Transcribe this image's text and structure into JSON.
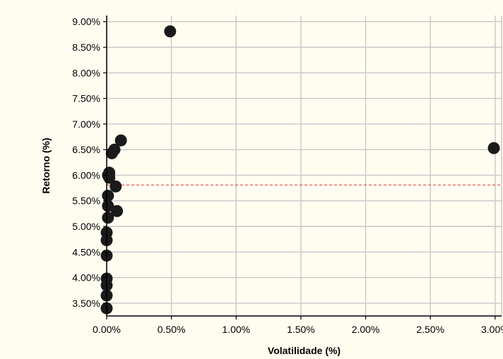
{
  "chart_data": {
    "type": "scatter",
    "title": "",
    "xlabel": "Volatilidade (%)",
    "ylabel": "Retorno (%)",
    "xlim": [
      0.0,
      3.05
    ],
    "ylim": [
      3.25,
      9.12
    ],
    "x_ticks": [
      {
        "value": 0.0,
        "label": "0.00%"
      },
      {
        "value": 0.5,
        "label": "0.50%"
      },
      {
        "value": 1.0,
        "label": "1.00%"
      },
      {
        "value": 1.5,
        "label": "1.50%"
      },
      {
        "value": 2.0,
        "label": "2.00%"
      },
      {
        "value": 2.5,
        "label": "2.50%"
      },
      {
        "value": 3.0,
        "label": "3.00%"
      }
    ],
    "y_ticks": [
      {
        "value": 3.5,
        "label": "3.50%"
      },
      {
        "value": 4.0,
        "label": "4.00%"
      },
      {
        "value": 4.5,
        "label": "4.50%"
      },
      {
        "value": 5.0,
        "label": "5.00%"
      },
      {
        "value": 5.5,
        "label": "5.50%"
      },
      {
        "value": 6.0,
        "label": "6.00%"
      },
      {
        "value": 6.5,
        "label": "6.50%"
      },
      {
        "value": 7.0,
        "label": "7.00%"
      },
      {
        "value": 7.5,
        "label": "7.50%"
      },
      {
        "value": 8.0,
        "label": "8.00%"
      },
      {
        "value": 8.5,
        "label": "8.50%"
      },
      {
        "value": 9.0,
        "label": "9.00%"
      }
    ],
    "grid": true,
    "reference_line": {
      "orientation": "horizontal",
      "y": 5.81,
      "style": "dashed",
      "color": "#e63232"
    },
    "series": [
      {
        "color": "#1a1a1a",
        "points": [
          {
            "x": 0.49,
            "y": 8.81
          },
          {
            "x": 2.99,
            "y": 6.53
          },
          {
            "x": 0.11,
            "y": 6.68
          },
          {
            "x": 0.06,
            "y": 6.5
          },
          {
            "x": 0.04,
            "y": 6.43
          },
          {
            "x": 0.02,
            "y": 6.05
          },
          {
            "x": 0.01,
            "y": 6.0
          },
          {
            "x": 0.02,
            "y": 5.95
          },
          {
            "x": 0.07,
            "y": 5.78
          },
          {
            "x": 0.01,
            "y": 5.6
          },
          {
            "x": 0.01,
            "y": 5.4
          },
          {
            "x": 0.08,
            "y": 5.3
          },
          {
            "x": 0.01,
            "y": 5.17
          },
          {
            "x": 0.0,
            "y": 4.88
          },
          {
            "x": 0.0,
            "y": 4.73
          },
          {
            "x": 0.0,
            "y": 4.43
          },
          {
            "x": 0.0,
            "y": 3.98
          },
          {
            "x": 0.0,
            "y": 3.85
          },
          {
            "x": 0.0,
            "y": 3.65
          },
          {
            "x": 0.0,
            "y": 3.4
          }
        ]
      }
    ],
    "highlight_point": {
      "x": 0.02,
      "y": 6.02,
      "color": "#2e8b72"
    },
    "colors": {
      "plot_background": "#fffdf0",
      "outer_background": "#fffdf0",
      "grid": "#c8c8c8",
      "axis": "#000000",
      "marker": "#1a1a1a"
    }
  }
}
